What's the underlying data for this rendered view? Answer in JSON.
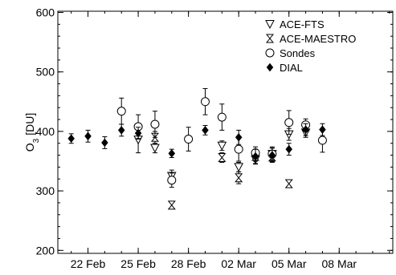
{
  "chart_data": {
    "type": "scatter",
    "title": "",
    "xlabel": "",
    "ylabel": "O₃ [DU]",
    "ylabel_main": "O",
    "ylabel_sub": "3",
    "ylabel_unit": "[DU]",
    "ylim": [
      195,
      602
    ],
    "xlim": [
      "2008-02-20",
      "2008-03-11"
    ],
    "xlim_days": [
      -1.8,
      18.2
    ],
    "x_ticks": [
      {
        "label": "22 Feb",
        "date": "2008-02-22"
      },
      {
        "label": "25 Feb",
        "date": "2008-02-25"
      },
      {
        "label": "28 Feb",
        "date": "2008-02-28"
      },
      {
        "label": "02 Mar",
        "date": "2008-03-02"
      },
      {
        "label": "05 Mar",
        "date": "2008-03-05"
      },
      {
        "label": "08 Mar",
        "date": "2008-03-08"
      }
    ],
    "y_ticks": [
      200,
      300,
      400,
      500,
      600
    ],
    "y_minor_step": 20,
    "x_minor_step_days": 1,
    "grid": false,
    "legend_position": "top-right",
    "series": [
      {
        "name": "ACE-FTS",
        "marker": "triangle-down-open",
        "points": [
          {
            "x": "2008-02-25",
            "y": 386,
            "err": 22
          },
          {
            "x": "2008-02-26",
            "y": 372,
            "err": 8
          },
          {
            "x": "2008-02-27",
            "y": 325,
            "err": 10
          },
          {
            "x": "2008-03-01",
            "y": 376,
            "err": 8
          },
          {
            "x": "2008-03-02",
            "y": 340,
            "err": 8
          },
          {
            "x": "2008-03-03",
            "y": 353,
            "err": 8
          },
          {
            "x": "2008-03-04",
            "y": 362,
            "err": 12
          },
          {
            "x": "2008-03-05",
            "y": 395,
            "err": 10
          },
          {
            "x": "2008-03-06",
            "y": 398,
            "err": 8
          }
        ]
      },
      {
        "name": "ACE-MAESTRO",
        "marker": "hourglass-cross",
        "points": [
          {
            "x": "2008-02-26",
            "y": 390,
            "err": 10
          },
          {
            "x": "2008-02-27",
            "y": 276,
            "err": 6
          },
          {
            "x": "2008-03-01",
            "y": 356,
            "err": 8
          },
          {
            "x": "2008-03-02",
            "y": 322,
            "err": 10
          },
          {
            "x": "2008-03-03",
            "y": 358,
            "err": 8
          },
          {
            "x": "2008-03-04",
            "y": 357,
            "err": 8
          },
          {
            "x": "2008-03-05",
            "y": 312,
            "err": 0
          },
          {
            "x": "2008-03-06",
            "y": 408,
            "err": 8
          }
        ]
      },
      {
        "name": "Sondes",
        "marker": "circle-open",
        "points": [
          {
            "x": "2008-02-24",
            "y": 434,
            "err": 22
          },
          {
            "x": "2008-02-25",
            "y": 408,
            "err": 20
          },
          {
            "x": "2008-02-26",
            "y": 412,
            "err": 22
          },
          {
            "x": "2008-02-27",
            "y": 318,
            "err": 12
          },
          {
            "x": "2008-02-28",
            "y": 387,
            "err": 20
          },
          {
            "x": "2008-02-29",
            "y": 450,
            "err": 22
          },
          {
            "x": "2008-03-01",
            "y": 424,
            "err": 22
          },
          {
            "x": "2008-03-02",
            "y": 370,
            "err": 20
          },
          {
            "x": "2008-03-03",
            "y": 364,
            "err": 10
          },
          {
            "x": "2008-03-04",
            "y": 362,
            "err": 10
          },
          {
            "x": "2008-03-05",
            "y": 415,
            "err": 20
          },
          {
            "x": "2008-03-06",
            "y": 411,
            "err": 10
          },
          {
            "x": "2008-03-07",
            "y": 385,
            "err": 20
          }
        ]
      },
      {
        "name": "DIAL",
        "marker": "diamond-filled",
        "points": [
          {
            "x": "2008-02-21",
            "y": 388,
            "err": 8
          },
          {
            "x": "2008-02-22",
            "y": 392,
            "err": 10
          },
          {
            "x": "2008-02-23",
            "y": 381,
            "err": 10
          },
          {
            "x": "2008-02-24",
            "y": 402,
            "err": 10
          },
          {
            "x": "2008-02-25",
            "y": 397,
            "err": 10
          },
          {
            "x": "2008-02-27",
            "y": 363,
            "err": 7
          },
          {
            "x": "2008-02-29",
            "y": 402,
            "err": 8
          },
          {
            "x": "2008-03-02",
            "y": 390,
            "err": 12
          },
          {
            "x": "2008-03-03",
            "y": 358,
            "err": 12
          },
          {
            "x": "2008-03-04",
            "y": 360,
            "err": 12
          },
          {
            "x": "2008-03-05",
            "y": 370,
            "err": 10
          },
          {
            "x": "2008-03-06",
            "y": 403,
            "err": 10
          },
          {
            "x": "2008-03-07",
            "y": 403,
            "err": 10
          }
        ]
      }
    ]
  }
}
